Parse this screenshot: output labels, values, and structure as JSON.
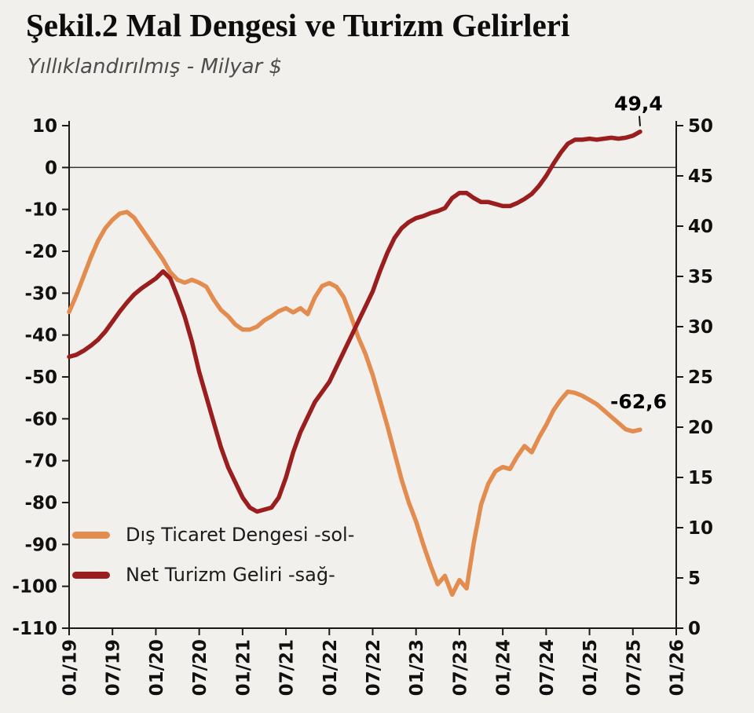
{
  "header": {
    "title": "Şekil.2 Mal Dengesi ve Turizm Gelirleri",
    "subtitle": "Yıllıklandırılmış - Milyar $"
  },
  "legend": {
    "items": [
      {
        "label": "Dış Ticaret Dengesi -sol-",
        "color": "#E38C4F"
      },
      {
        "label": "Net Turizm Geliri -sağ-",
        "color": "#9A1E1E"
      }
    ]
  },
  "chart_data": {
    "type": "line",
    "title": "Şekil.2 Mal Dengesi ve Turizm Gelirleri",
    "subtitle": "Yıllıklandırılmış - Milyar $",
    "grid": "zero-line-only",
    "legend_position": "lower-left-inside",
    "x_tick_labels": [
      "01/19",
      "07/19",
      "01/20",
      "07/20",
      "01/21",
      "07/21",
      "01/22",
      "07/22",
      "01/23",
      "07/23",
      "01/24",
      "07/24",
      "01/25",
      "07/25",
      "01/26"
    ],
    "months_per_tick": 6,
    "start_month": "01/19",
    "left_axis": {
      "ticks": [
        10,
        0,
        -10,
        -20,
        -30,
        -40,
        -50,
        -60,
        -70,
        -80,
        -90,
        -100,
        -110
      ],
      "range": [
        -110,
        10
      ]
    },
    "right_axis": {
      "ticks": [
        50,
        45,
        40,
        35,
        30,
        25,
        20,
        15,
        10,
        5,
        0
      ],
      "range": [
        0,
        50
      ]
    },
    "series": [
      {
        "id": "trade-balance",
        "name": "Dış Ticaret Dengesi -sol-",
        "axis": "left",
        "color": "#E38C4F",
        "values": [
          -34.5,
          -30.5,
          -26,
          -21.5,
          -17.5,
          -14.5,
          -12.5,
          -11,
          -10.6,
          -12,
          -14.5,
          -17,
          -19.5,
          -22,
          -25,
          -26.8,
          -27.5,
          -26.8,
          -27.5,
          -28.5,
          -31.5,
          -34,
          -35.5,
          -37.5,
          -38.7,
          -38.7,
          -38,
          -36.5,
          -35.5,
          -34.3,
          -33.6,
          -34.6,
          -33.6,
          -35,
          -31,
          -28.3,
          -27.6,
          -28.5,
          -31,
          -35.5,
          -40.5,
          -44.5,
          -49.5,
          -55.5,
          -61.5,
          -68,
          -74.5,
          -80,
          -84.5,
          -90,
          -95,
          -99.5,
          -97.5,
          -102,
          -98.5,
          -100.5,
          -89.5,
          -80.5,
          -75.5,
          -72.5,
          -71.5,
          -72,
          -69,
          -66.5,
          -68,
          -64.5,
          -61.5,
          -58,
          -55.5,
          -53.5,
          -53.8,
          -54.5,
          -55.5,
          -56.5,
          -58,
          -59.5,
          -61,
          -62.5,
          -63,
          -62.6
        ]
      },
      {
        "id": "net-tourism",
        "name": "Net Turizm Geliri -sağ-",
        "axis": "right",
        "color": "#9A1E1E",
        "values": [
          27.0,
          27.2,
          27.6,
          28.1,
          28.7,
          29.5,
          30.5,
          31.5,
          32.4,
          33.2,
          33.8,
          34.3,
          34.8,
          35.5,
          34.8,
          33.0,
          31.0,
          28.5,
          25.5,
          23.0,
          20.5,
          18.0,
          16.0,
          14.5,
          13.0,
          12.0,
          11.6,
          11.8,
          12.0,
          13.0,
          15.0,
          17.5,
          19.5,
          21.0,
          22.5,
          23.5,
          24.5,
          26.0,
          27.5,
          29.0,
          30.5,
          32.0,
          33.5,
          35.5,
          37.3,
          38.8,
          39.8,
          40.4,
          40.8,
          41.0,
          41.3,
          41.5,
          41.8,
          42.8,
          43.3,
          43.3,
          42.8,
          42.4,
          42.4,
          42.2,
          42.0,
          42.0,
          42.3,
          42.7,
          43.2,
          44.0,
          45.0,
          46.2,
          47.3,
          48.2,
          48.6,
          48.6,
          48.7,
          48.6,
          48.7,
          48.8,
          48.7,
          48.8,
          49.0,
          49.4
        ]
      }
    ],
    "annotations": [
      {
        "text": "49,4",
        "series_index": 1
      },
      {
        "text": "-62,6",
        "series_index": 0
      }
    ]
  }
}
